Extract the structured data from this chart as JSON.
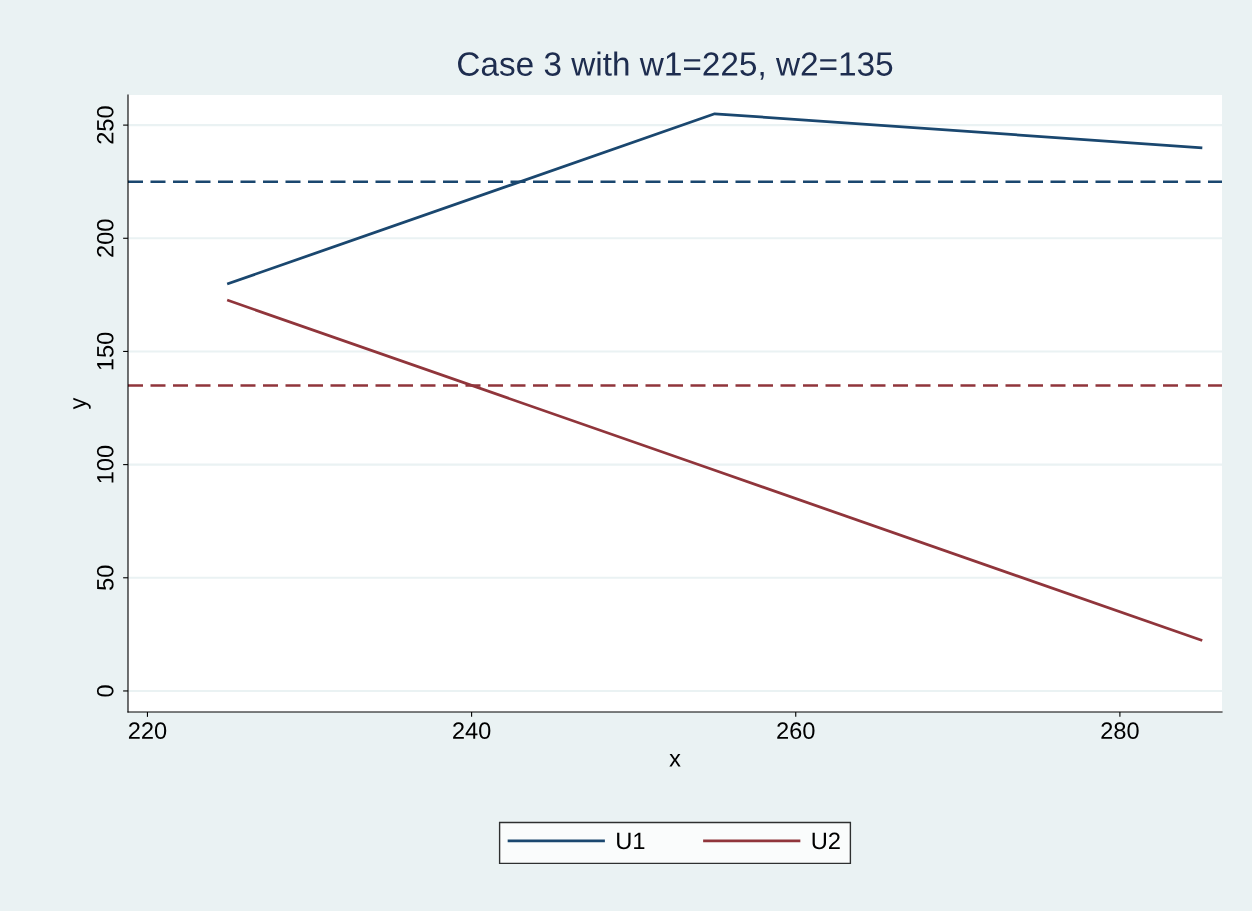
{
  "chart_data": {
    "type": "line",
    "title": "Case 3 with w1=225, w2=135",
    "xlabel": "x",
    "ylabel": "y",
    "series": [
      {
        "name": "U1",
        "color": "#1a476f",
        "x": [
          225,
          255,
          285
        ],
        "values": [
          180,
          255,
          240
        ]
      },
      {
        "name": "U2",
        "color": "#90353b",
        "x": [
          225,
          255,
          285
        ],
        "values": [
          172.5,
          97.5,
          22.5
        ]
      }
    ],
    "xlim": [
      218.8,
      286.3
    ],
    "xticks": [
      220,
      240,
      260,
      280
    ],
    "ylim": [
      -9.3,
      263.3
    ],
    "yticks": [
      0,
      50,
      100,
      150,
      200,
      250
    ],
    "ref_lines": [
      {
        "axis": "y",
        "value": 225,
        "label": null,
        "color": "#1a476f",
        "line_style": "dashed"
      },
      {
        "axis": "y",
        "value": 135,
        "label": null,
        "color": "#90353b",
        "line_style": "dashed"
      }
    ],
    "grid": "y",
    "legend": "bottom",
    "line_style": "solid",
    "marker": "none"
  }
}
